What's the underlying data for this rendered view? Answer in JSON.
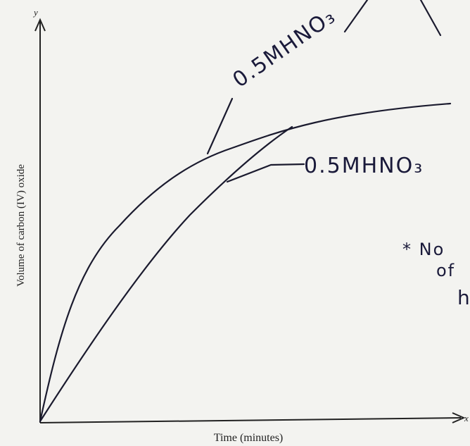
{
  "axes": {
    "y_symbol": "y",
    "y_label": "Volume of carbon (IV) oxide",
    "x_label": "Time (minutes)",
    "x_symbol": "x"
  },
  "annotations": {
    "top_curve": "0.5MHNO₃",
    "lower_curve": "0.5MHNO₃",
    "note": [
      "* No",
      "of",
      "h"
    ]
  }
}
